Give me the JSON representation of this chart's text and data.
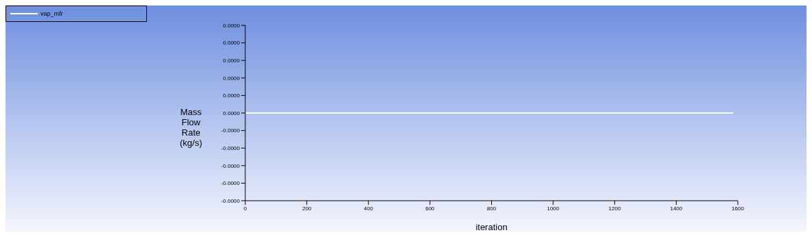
{
  "chart_data": {
    "type": "line",
    "xlabel": "iteration",
    "ylabel": "Mass Flow Rate (kg/s)",
    "x": [
      0,
      1585
    ],
    "series": [
      {
        "name": "vap_mfr",
        "color": "#ffffff",
        "values": [
          0,
          0
        ]
      }
    ],
    "xlim": [
      0,
      1600
    ],
    "xticks": [
      0,
      200,
      400,
      600,
      800,
      1000,
      1200,
      1400,
      1600
    ],
    "ylim": [
      -4e-05,
      4e-05
    ],
    "yticks": [
      {
        "value": -4e-05,
        "label": "-0.0000"
      },
      {
        "value": -3.2e-05,
        "label": "-0.0000"
      },
      {
        "value": -2.4e-05,
        "label": "-0.0000"
      },
      {
        "value": -1.6e-05,
        "label": "-0.0000"
      },
      {
        "value": -8e-06,
        "label": "-0.0000"
      },
      {
        "value": 0,
        "label": "0.0000"
      },
      {
        "value": 8e-06,
        "label": "0.0000"
      },
      {
        "value": 1.6e-05,
        "label": "0.0000"
      },
      {
        "value": 2.4e-05,
        "label": "0.0000"
      },
      {
        "value": 3.2e-05,
        "label": "0.0000"
      },
      {
        "value": 4e-05,
        "label": "0.0000"
      }
    ],
    "grid": false,
    "legend": "top left",
    "marker": "none",
    "line_style": "solid"
  }
}
